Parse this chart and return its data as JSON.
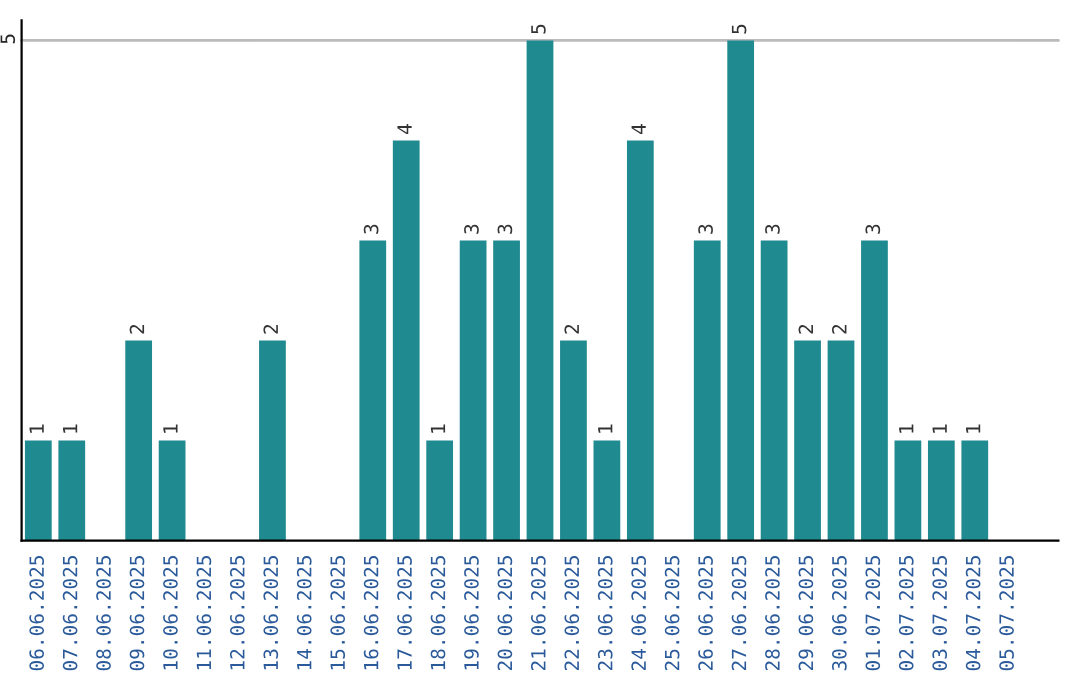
{
  "chart_data": {
    "type": "bar",
    "categories": [
      "06.06.2025",
      "07.06.2025",
      "08.06.2025",
      "09.06.2025",
      "10.06.2025",
      "11.06.2025",
      "12.06.2025",
      "13.06.2025",
      "14.06.2025",
      "15.06.2025",
      "16.06.2025",
      "17.06.2025",
      "18.06.2025",
      "19.06.2025",
      "20.06.2025",
      "21.06.2025",
      "22.06.2025",
      "23.06.2025",
      "24.06.2025",
      "25.06.2025",
      "26.06.2025",
      "27.06.2025",
      "28.06.2025",
      "29.06.2025",
      "30.06.2025",
      "01.07.2025",
      "02.07.2025",
      "03.07.2025",
      "04.07.2025",
      "05.07.2025"
    ],
    "values": [
      1,
      1,
      0,
      2,
      1,
      0,
      0,
      2,
      0,
      0,
      3,
      4,
      1,
      3,
      3,
      5,
      2,
      1,
      4,
      0,
      3,
      5,
      3,
      2,
      2,
      3,
      1,
      1,
      1,
      0
    ],
    "value_labels": [
      "1",
      "1",
      null,
      "2",
      "1",
      null,
      null,
      "2",
      null,
      null,
      "3",
      "4",
      "1",
      "3",
      "3",
      "5",
      "2",
      "1",
      "4",
      null,
      "3",
      "5",
      "3",
      "2",
      "2",
      "3",
      "1",
      "1",
      "1",
      null
    ],
    "color": "#1f8a8f",
    "ylim": [
      0,
      5.2
    ],
    "yticks": [
      5
    ],
    "grid": "y"
  }
}
